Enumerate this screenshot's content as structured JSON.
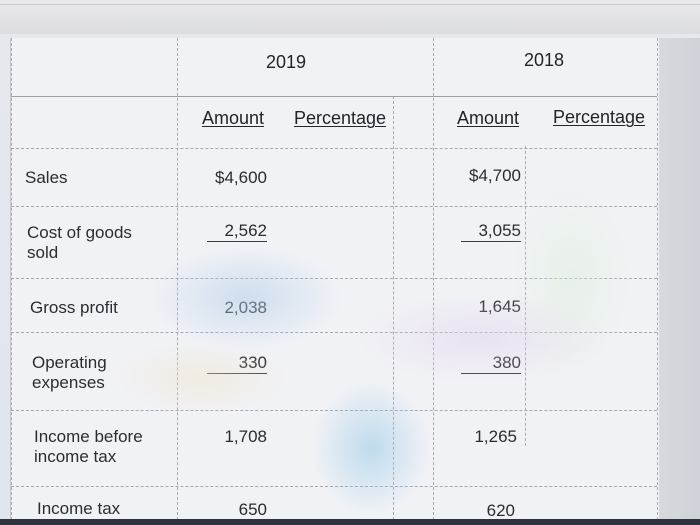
{
  "table": {
    "years": [
      "2019",
      "2018"
    ],
    "subheaders": {
      "y2019_amount": "Amount",
      "y2019_percentage": "Percentage",
      "y2018_amount": "Amount",
      "y2018_percentage": "Percentage"
    },
    "rows": [
      {
        "label": "Sales",
        "amount_2019": "$4,600",
        "amount_2018": "$4,700"
      },
      {
        "label": "Cost of goods sold",
        "amount_2019": "2,562",
        "amount_2018": "3,055"
      },
      {
        "label": "Gross profit",
        "amount_2019": "2,038",
        "amount_2018": "1,645"
      },
      {
        "label": "Operating expenses",
        "amount_2019": "330",
        "amount_2018": "380"
      },
      {
        "label": "Income before income tax",
        "amount_2019": "1,708",
        "amount_2018": "1,265"
      },
      {
        "label": "Income tax",
        "amount_2019": "650",
        "amount_2018": "620"
      }
    ]
  }
}
